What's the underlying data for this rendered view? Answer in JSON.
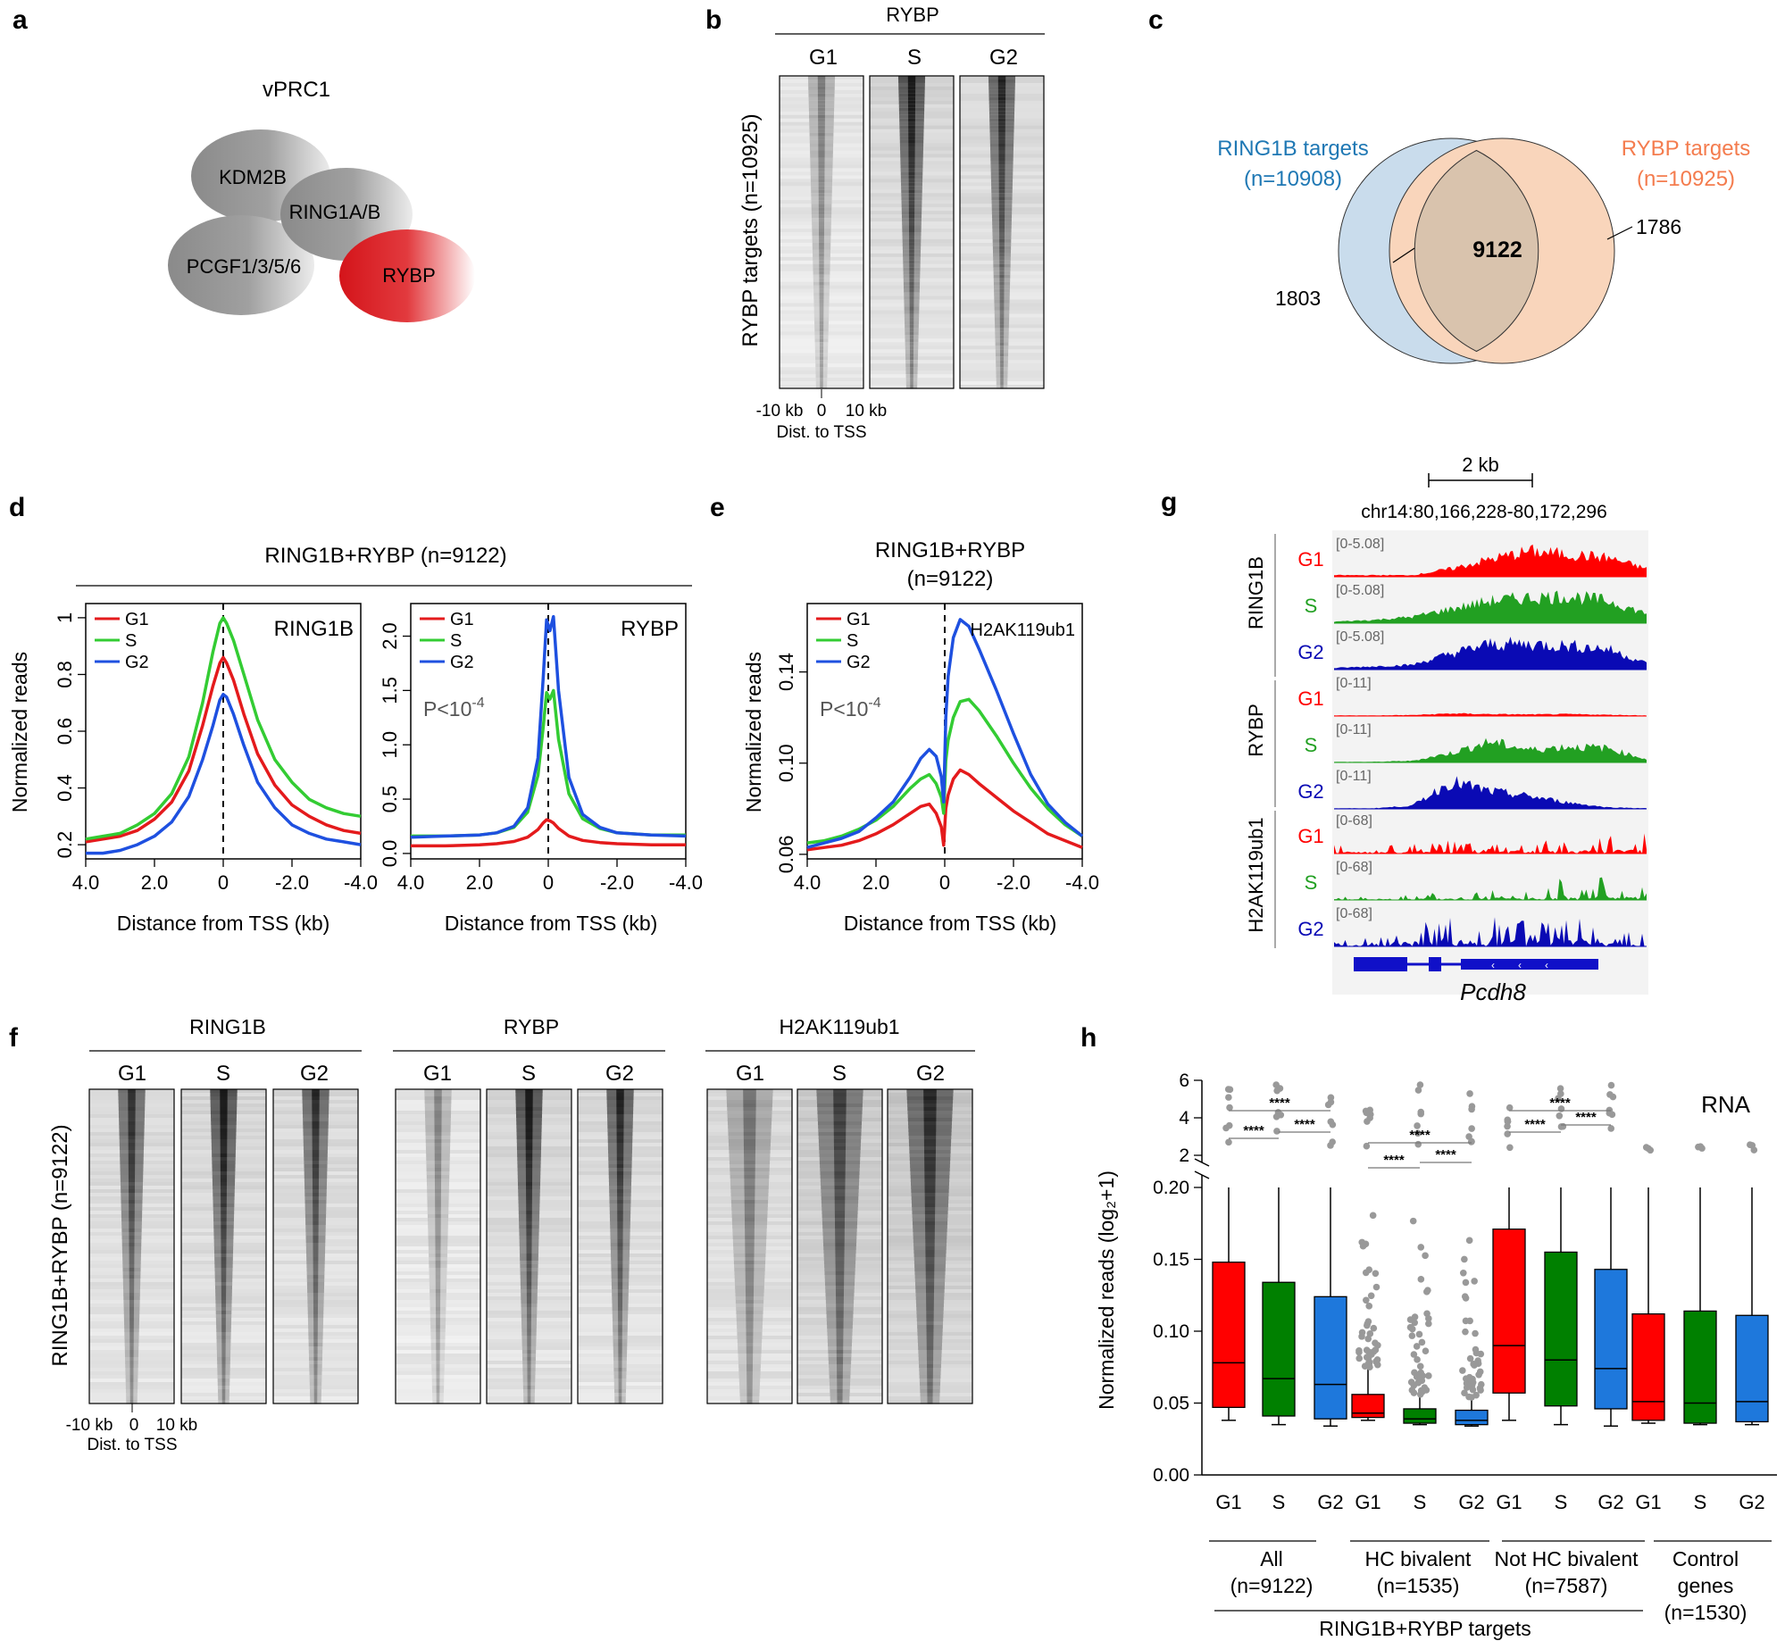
{
  "panels": {
    "a": {
      "letter": "a",
      "title": "vPRC1",
      "components": [
        "KDM2B",
        "RING1A/B",
        "PCGF1/3/5/6",
        "RYBP"
      ],
      "colors": {
        "grey": "#9a9a9a",
        "rybp": "#d8161c"
      }
    },
    "b": {
      "letter": "b",
      "title": "RYBP",
      "columns": [
        "G1",
        "S",
        "G2"
      ],
      "row_label": "RYBP targets  (n=10925)",
      "x_ticks": [
        "-10 kb",
        "0",
        "10 kb"
      ],
      "x_label": "Dist. to TSS"
    },
    "c": {
      "letter": "c",
      "left_label": [
        "RING1B targets",
        "(n=10908)"
      ],
      "right_label": [
        "RYBP targets",
        "(n=10925)"
      ],
      "left_only": "1803",
      "overlap": "9122",
      "right_only": "1786",
      "colors": {
        "left": "#c9dcec",
        "right": "#f9d5bb",
        "overlap": "#d9c3ad",
        "left_text": "#1f78b4",
        "right_text": "#f47c4e"
      }
    },
    "d": {
      "letter": "d",
      "header": "RING1B+RYBP  (n=9122)",
      "ylabel": "Normalized reads",
      "xlabel": "Distance from TSS (kb)"
    },
    "e": {
      "letter": "e",
      "header": [
        "RING1B+RYBP",
        "(n=9122)"
      ],
      "ylabel": "Normalized reads",
      "xlabel": "Distance from TSS (kb)"
    },
    "f": {
      "letter": "f",
      "groups": [
        "RING1B",
        "RYBP",
        "H2AK119ub1"
      ],
      "columns": [
        "G1",
        "S",
        "G2"
      ],
      "row_label": "RING1B+RYBP  (n=9122)",
      "x_ticks": [
        "-10 kb",
        "0",
        "10 kb"
      ],
      "x_label": "Dist. to TSS"
    },
    "g": {
      "letter": "g",
      "scale": "2 kb",
      "locus": "chr14:80,166,228-80,172,296",
      "groups": [
        "RING1B",
        "RYBP",
        "H2AK119ub1"
      ],
      "tracks": [
        {
          "phase": "G1",
          "range": "[0-5.08]",
          "color": "#ff0000"
        },
        {
          "phase": "S",
          "range": "[0-5.08]",
          "color": "#22a022"
        },
        {
          "phase": "G2",
          "range": "[0-5.08]",
          "color": "#0a0ab4"
        },
        {
          "phase": "G1",
          "range": "[0-11]",
          "color": "#ff0000"
        },
        {
          "phase": "S",
          "range": "[0-11]",
          "color": "#22a022"
        },
        {
          "phase": "G2",
          "range": "[0-11]",
          "color": "#0a0ab4"
        },
        {
          "phase": "G1",
          "range": "[0-68]",
          "color": "#ff0000"
        },
        {
          "phase": "S",
          "range": "[0-68]",
          "color": "#22a022"
        },
        {
          "phase": "G2",
          "range": "[0-68]",
          "color": "#0a0ab4"
        }
      ],
      "gene": "Pcdh8"
    },
    "h": {
      "letter": "h",
      "corner_label": "RNA",
      "ylabel": "Normalized reads (log₂+1)",
      "x_labels": [
        "G1",
        "S",
        "G2",
        "G1",
        "S",
        "G2",
        "G1",
        "S",
        "G2",
        "G1",
        "S",
        "G2"
      ],
      "group_labels": [
        [
          "All",
          "(n=9122)"
        ],
        [
          "HC bivalent",
          "(n=1535)"
        ],
        [
          "Not HC bivalent",
          "(n=7587)"
        ],
        [
          "Control",
          "genes",
          "(n=1530)"
        ]
      ],
      "bottom_label": "RING1B+RYBP targets",
      "sig": "****"
    }
  },
  "chart_data": [
    {
      "id": "d1",
      "type": "line",
      "corner_label": "RING1B",
      "x_ticks": [
        "4.0",
        "2.0",
        "0",
        "-2.0",
        "-4.0"
      ],
      "x": [
        4.0,
        3.5,
        3.0,
        2.5,
        2.0,
        1.5,
        1.0,
        0.6,
        0.3,
        0.1,
        0.0,
        -0.1,
        -0.3,
        -0.6,
        -1.0,
        -1.5,
        -2.0,
        -2.5,
        -3.0,
        -3.5,
        -4.0
      ],
      "xlim": [
        4.0,
        -4.0
      ],
      "ylim": [
        0.15,
        1.05
      ],
      "y_ticks": [
        0.2,
        0.4,
        0.6,
        0.8,
        1.0
      ],
      "series": [
        {
          "name": "G1",
          "color": "#e41a1c",
          "values": [
            0.21,
            0.22,
            0.23,
            0.25,
            0.29,
            0.35,
            0.46,
            0.62,
            0.76,
            0.84,
            0.86,
            0.84,
            0.78,
            0.66,
            0.52,
            0.41,
            0.34,
            0.3,
            0.27,
            0.25,
            0.24
          ]
        },
        {
          "name": "S",
          "color": "#33cc33",
          "values": [
            0.22,
            0.23,
            0.24,
            0.27,
            0.31,
            0.38,
            0.51,
            0.7,
            0.88,
            0.98,
            1.0,
            0.98,
            0.92,
            0.8,
            0.64,
            0.5,
            0.42,
            0.36,
            0.33,
            0.31,
            0.3
          ]
        },
        {
          "name": "G2",
          "color": "#1e50e0",
          "values": [
            0.17,
            0.17,
            0.18,
            0.2,
            0.23,
            0.28,
            0.37,
            0.5,
            0.62,
            0.71,
            0.73,
            0.72,
            0.66,
            0.55,
            0.42,
            0.33,
            0.27,
            0.24,
            0.22,
            0.21,
            0.2
          ]
        }
      ]
    },
    {
      "id": "d2",
      "type": "line",
      "corner_label": "RYBP",
      "annotation": "P<10",
      "annotation_exp": "-4",
      "x_ticks": [
        "4.0",
        "2.0",
        "0",
        "-2.0",
        "-4.0"
      ],
      "x": [
        4.0,
        3.0,
        2.0,
        1.5,
        1.0,
        0.6,
        0.3,
        0.15,
        0.05,
        -0.05,
        -0.15,
        -0.3,
        -0.6,
        -1.0,
        -1.5,
        -2.0,
        -3.0,
        -4.0
      ],
      "xlim": [
        4.0,
        -4.0
      ],
      "ylim": [
        -0.05,
        2.3
      ],
      "y_ticks": [
        0.0,
        0.5,
        1.0,
        1.5,
        2.0
      ],
      "y_tick_labels": [
        "0.0",
        "0.5",
        "1.0",
        "1.5",
        "2.0"
      ],
      "series": [
        {
          "name": "G1",
          "color": "#e41a1c",
          "values": [
            0.07,
            0.07,
            0.08,
            0.09,
            0.11,
            0.15,
            0.22,
            0.28,
            0.31,
            0.3,
            0.28,
            0.23,
            0.16,
            0.12,
            0.1,
            0.09,
            0.08,
            0.08
          ]
        },
        {
          "name": "S",
          "color": "#33cc33",
          "values": [
            0.16,
            0.16,
            0.17,
            0.19,
            0.24,
            0.38,
            0.72,
            1.15,
            1.48,
            1.42,
            1.5,
            1.05,
            0.55,
            0.32,
            0.23,
            0.19,
            0.17,
            0.17
          ]
        },
        {
          "name": "G2",
          "color": "#1e50e0",
          "values": [
            0.15,
            0.16,
            0.17,
            0.19,
            0.25,
            0.42,
            0.88,
            1.6,
            2.15,
            2.05,
            2.18,
            1.5,
            0.7,
            0.36,
            0.24,
            0.19,
            0.17,
            0.16
          ]
        }
      ]
    },
    {
      "id": "e",
      "type": "line",
      "corner_label": "H2AK119ub1",
      "annotation": "P<10",
      "annotation_exp": "-4",
      "x_ticks": [
        "4.0",
        "2.0",
        "0",
        "-2.0",
        "-4.0"
      ],
      "x": [
        4.0,
        3.5,
        3.0,
        2.5,
        2.0,
        1.5,
        1.0,
        0.7,
        0.45,
        0.25,
        0.1,
        0.03,
        -0.03,
        -0.1,
        -0.25,
        -0.45,
        -0.7,
        -1.0,
        -1.5,
        -2.0,
        -2.5,
        -3.0,
        -3.5,
        -4.0
      ],
      "xlim": [
        4.0,
        -4.0
      ],
      "ylim": [
        0.058,
        0.17
      ],
      "y_ticks": [
        0.06,
        0.1,
        0.14
      ],
      "y_tick_labels": [
        "0.06",
        "0.10",
        "0.14"
      ],
      "series": [
        {
          "name": "G1",
          "color": "#e41a1c",
          "values": [
            0.062,
            0.063,
            0.064,
            0.066,
            0.069,
            0.073,
            0.078,
            0.081,
            0.082,
            0.078,
            0.072,
            0.064,
            0.08,
            0.086,
            0.093,
            0.097,
            0.095,
            0.091,
            0.085,
            0.079,
            0.074,
            0.069,
            0.066,
            0.063
          ]
        },
        {
          "name": "S",
          "color": "#33cc33",
          "values": [
            0.065,
            0.066,
            0.068,
            0.071,
            0.075,
            0.081,
            0.089,
            0.093,
            0.095,
            0.091,
            0.085,
            0.078,
            0.101,
            0.11,
            0.12,
            0.127,
            0.128,
            0.123,
            0.112,
            0.1,
            0.089,
            0.08,
            0.073,
            0.068
          ]
        },
        {
          "name": "G2",
          "color": "#1e50e0",
          "values": [
            0.063,
            0.065,
            0.067,
            0.07,
            0.076,
            0.083,
            0.094,
            0.102,
            0.106,
            0.103,
            0.094,
            0.083,
            0.12,
            0.138,
            0.155,
            0.163,
            0.16,
            0.15,
            0.132,
            0.113,
            0.095,
            0.082,
            0.074,
            0.068
          ]
        }
      ]
    },
    {
      "id": "h",
      "type": "box",
      "title": "RNA",
      "ylabel": "Normalized reads (log₂+1)",
      "y_ticks_lower": [
        "0.00",
        "0.05",
        "0.10",
        "0.15",
        "0.20"
      ],
      "y_ticks_upper": [
        "2",
        "4",
        "6"
      ],
      "boxes": [
        {
          "cat": "G1",
          "group": "All",
          "color": "#ff0000",
          "min": 0.038,
          "q1": 0.047,
          "median": 0.078,
          "q3": 0.148,
          "max": 0.2
        },
        {
          "cat": "S",
          "group": "All",
          "color": "#008000",
          "min": 0.035,
          "q1": 0.041,
          "median": 0.067,
          "q3": 0.134,
          "max": 0.2
        },
        {
          "cat": "G2",
          "group": "All",
          "color": "#1e78dc",
          "min": 0.034,
          "q1": 0.039,
          "median": 0.063,
          "q3": 0.124,
          "max": 0.2
        },
        {
          "cat": "G1",
          "group": "HC bivalent",
          "color": "#ff0000",
          "min": 0.038,
          "q1": 0.04,
          "median": 0.043,
          "q3": 0.056,
          "max": 0.075
        },
        {
          "cat": "S",
          "group": "HC bivalent",
          "color": "#008000",
          "min": 0.035,
          "q1": 0.036,
          "median": 0.039,
          "q3": 0.046,
          "max": 0.056
        },
        {
          "cat": "G2",
          "group": "HC bivalent",
          "color": "#1e78dc",
          "min": 0.034,
          "q1": 0.035,
          "median": 0.038,
          "q3": 0.045,
          "max": 0.054
        },
        {
          "cat": "G1",
          "group": "Not HC bivalent",
          "color": "#ff0000",
          "min": 0.038,
          "q1": 0.057,
          "median": 0.09,
          "q3": 0.171,
          "max": 0.2
        },
        {
          "cat": "S",
          "group": "Not HC bivalent",
          "color": "#008000",
          "min": 0.035,
          "q1": 0.048,
          "median": 0.08,
          "q3": 0.155,
          "max": 0.2
        },
        {
          "cat": "G2",
          "group": "Not HC bivalent",
          "color": "#1e78dc",
          "min": 0.034,
          "q1": 0.046,
          "median": 0.074,
          "q3": 0.143,
          "max": 0.2
        },
        {
          "cat": "G1",
          "group": "Control genes",
          "color": "#ff0000",
          "min": 0.036,
          "q1": 0.038,
          "median": 0.051,
          "q3": 0.112,
          "max": 0.2
        },
        {
          "cat": "S",
          "group": "Control genes",
          "color": "#008000",
          "min": 0.035,
          "q1": 0.036,
          "median": 0.05,
          "q3": 0.114,
          "max": 0.2
        },
        {
          "cat": "G2",
          "group": "Control genes",
          "color": "#1e78dc",
          "min": 0.035,
          "q1": 0.037,
          "median": 0.051,
          "q3": 0.111,
          "max": 0.2
        }
      ]
    }
  ]
}
